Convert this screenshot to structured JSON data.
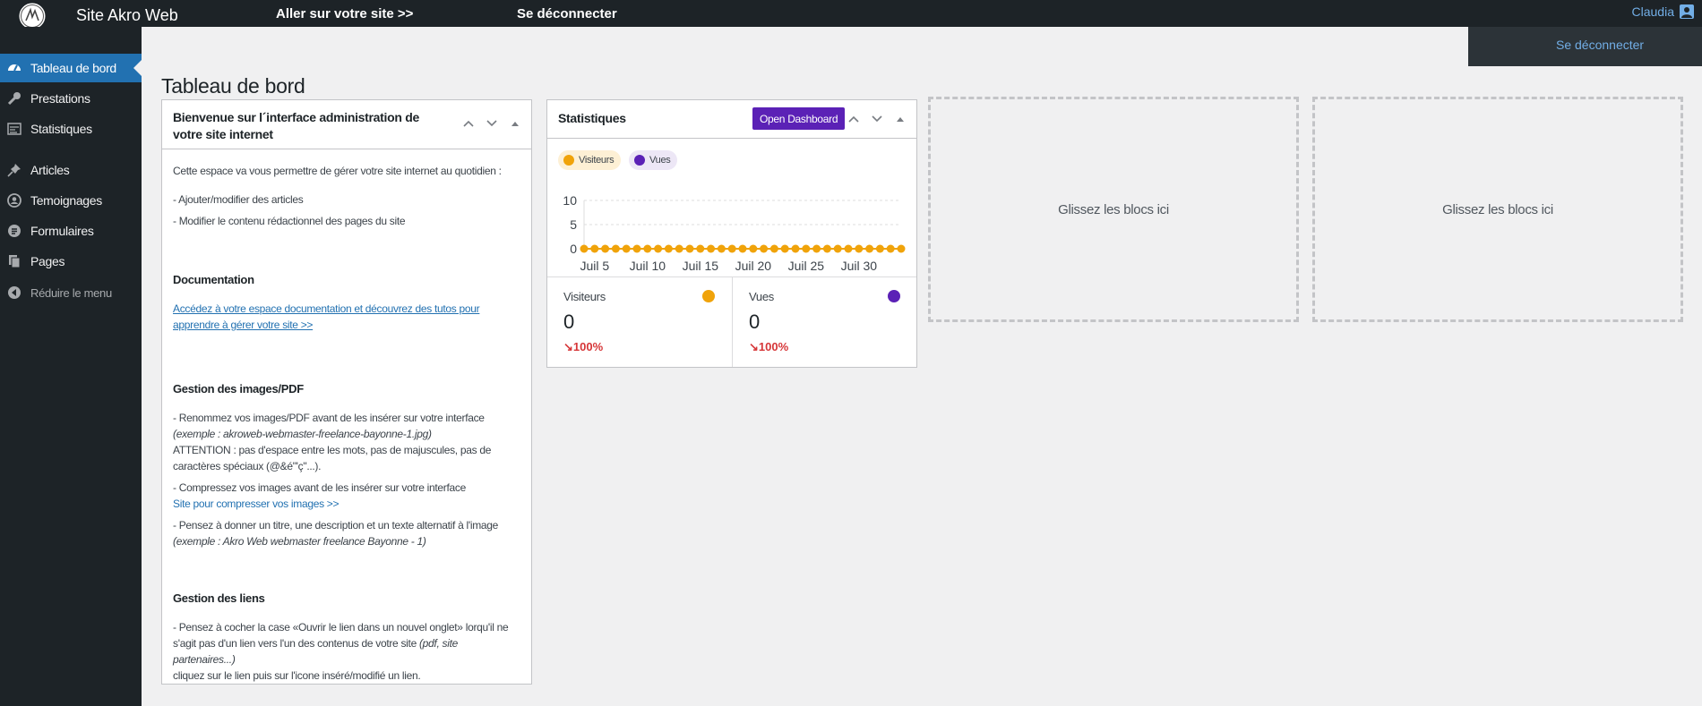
{
  "adminbar": {
    "site_name": "Site Akro Web",
    "visit_site": "Aller sur votre site >>",
    "logout": "Se déconnecter",
    "user_name": "Claudia",
    "dropdown_logout": "Se déconnecter"
  },
  "sidebar": {
    "items": [
      {
        "label": "Tableau de bord",
        "icon": "dashboard-icon",
        "active": true
      },
      {
        "label": "Prestations",
        "icon": "wrench-icon"
      },
      {
        "label": "Statistiques",
        "icon": "stats-icon"
      },
      {
        "label": "Articles",
        "icon": "pin-icon"
      },
      {
        "label": "Temoignages",
        "icon": "testimonial-icon"
      },
      {
        "label": "Formulaires",
        "icon": "form-icon"
      },
      {
        "label": "Pages",
        "icon": "pages-icon"
      },
      {
        "label": "Réduire le menu",
        "icon": "collapse-icon"
      }
    ]
  },
  "page_title": "Tableau de bord",
  "welcome": {
    "title": "Bienvenue sur l´interface administration de votre site internet",
    "intro": "Cette espace va vous permettre de gérer votre site internet au quotidien :",
    "bullet1": "- Ajouter/modifier des articles",
    "bullet2": "- Modifier le contenu rédactionnel des pages du site",
    "doc_heading": "Documentation",
    "doc_link": "Accédez à votre espace documentation et découvrez des tutos pour apprendre à gérer votre site >>",
    "images_heading": "Gestion des images/PDF",
    "img1_text": "- Renommez vos images/PDF avant de les insérer sur votre interface ",
    "img1_example": "(exemple : akroweb-webmaster-freelance-bayonne-1.jpg)",
    "img1_warning": "ATTENTION : pas d'espace entre les mots, pas de majuscules, pas de caractères spéciaux (@&é\"'ç\"...).",
    "img2_text": "- Compressez vos images avant de les insérer sur votre interface",
    "img2_link": "Site pour compresser vos images >>",
    "img3_text": "- Pensez à donner un titre, une description et un texte alternatif à l'image ",
    "img3_example": "(exemple : Akro Web webmaster freelance Bayonne - 1)",
    "links_heading": "Gestion des liens",
    "links1_text": "- Pensez à cocher la case «Ouvrir le lien dans un nouvel onglet» lorqu'il ne s'agit pas d'un lien vers l'un des contenus de votre site ",
    "links1_example": "(pdf, site partenaires...)",
    "links2_text": "cliquez sur le lien puis sur l'icone inséré/modifié un lien."
  },
  "stats": {
    "title": "Statistiques",
    "open_button": "Open Dashboard",
    "legend_visitors": "Visiteurs",
    "legend_views": "Vues",
    "visitors_label": "Visiteurs",
    "visitors_value": "0",
    "visitors_change": "↘100%",
    "views_label": "Vues",
    "views_value": "0",
    "views_change": "↘100%",
    "colors": {
      "visitors": "#f0a30a",
      "views": "#5b21b6",
      "visitors_pill": "#fdf0d5",
      "views_pill": "#ede7f6"
    }
  },
  "dropzones": {
    "label1": "Glissez les blocs ici",
    "label2": "Glissez les blocs ici"
  },
  "chart_data": {
    "type": "line",
    "x_ticks": [
      "Juil 5",
      "Juil 10",
      "Juil 15",
      "Juil 20",
      "Juil 25",
      "Juil 30"
    ],
    "y_ticks": [
      "10",
      "5",
      "0"
    ],
    "ylim": [
      0,
      10
    ],
    "series": [
      {
        "name": "Visiteurs",
        "values": [
          0,
          0,
          0,
          0,
          0,
          0,
          0,
          0,
          0,
          0,
          0,
          0,
          0,
          0,
          0,
          0,
          0,
          0,
          0,
          0,
          0,
          0,
          0,
          0,
          0,
          0,
          0,
          0,
          0,
          0,
          0
        ]
      }
    ]
  }
}
